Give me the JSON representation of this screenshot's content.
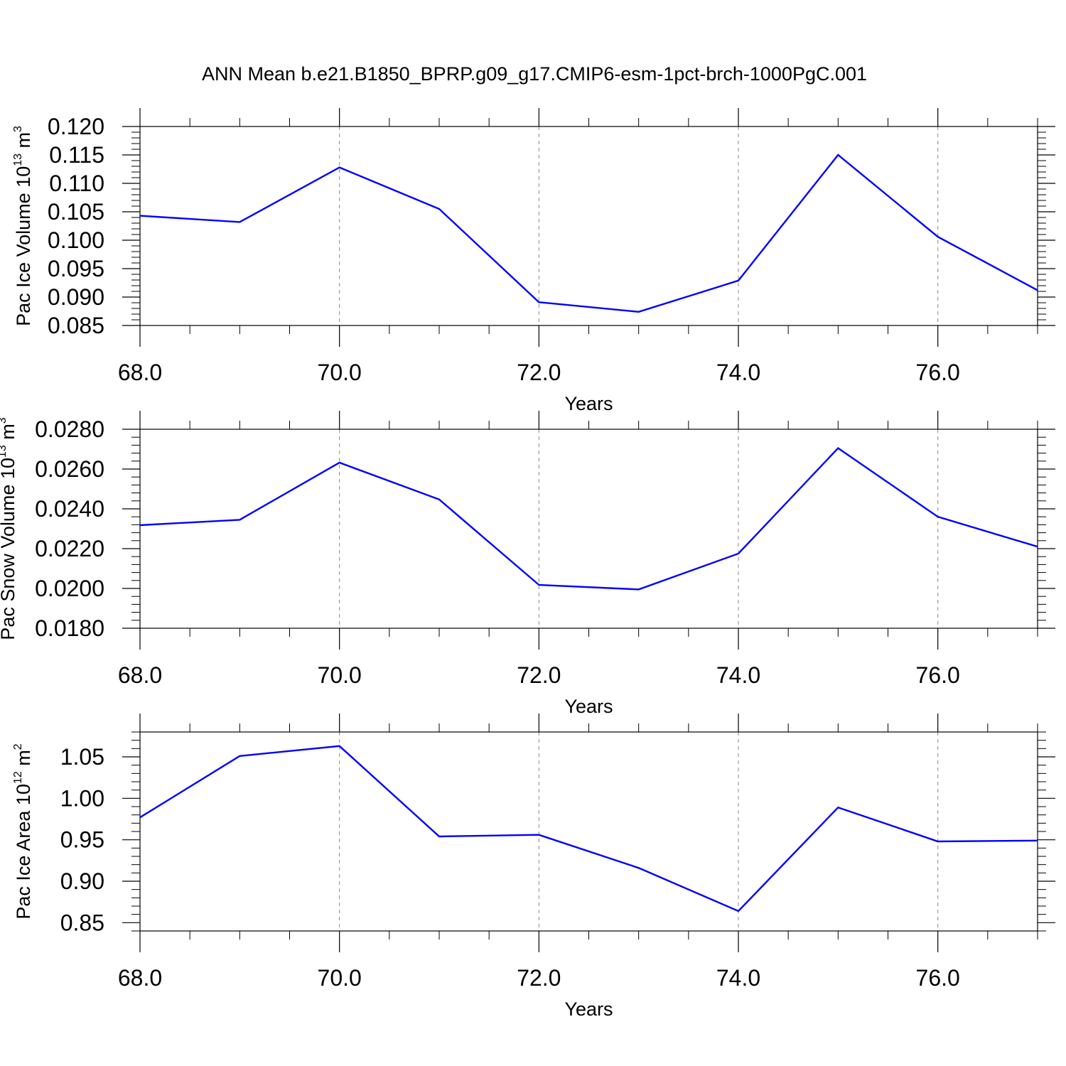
{
  "title": "ANN Mean b.e21.B1850_BPRP.g09_g17.CMIP6-esm-1pct-brch-1000PgC.001",
  "style": {
    "line_color": "#0000ff",
    "frame_color": "#000000",
    "grid_color": "#888888"
  },
  "chart_data": [
    {
      "type": "line",
      "xlabel": "Years",
      "ylabel": {
        "text": "Pac Ice Volume 10",
        "sup": "13",
        "unit": " m",
        "unit_sup": "3"
      },
      "xlim": [
        68,
        77
      ],
      "ylim": [
        0.085,
        0.12
      ],
      "grid": "vertical-dashed",
      "x": [
        68,
        69,
        70,
        71,
        72,
        73,
        74,
        75,
        76,
        77
      ],
      "x_ticks": [
        68,
        70,
        72,
        74,
        76
      ],
      "x_tick_labels": [
        "68.0",
        "70.0",
        "72.0",
        "74.0",
        "76.0"
      ],
      "y_ticks": [
        0.085,
        0.09,
        0.095,
        0.1,
        0.105,
        0.11,
        0.115,
        0.12
      ],
      "y_tick_labels": [
        "0.085",
        "0.090",
        "0.095",
        "0.100",
        "0.105",
        "0.110",
        "0.115",
        "0.120"
      ],
      "series": [
        {
          "values": [
            0.1043,
            0.1032,
            0.1128,
            0.1055,
            0.0891,
            0.0874,
            0.0929,
            0.115,
            0.1006,
            0.0912
          ]
        }
      ]
    },
    {
      "type": "line",
      "xlabel": "Years",
      "ylabel": {
        "text": "Pac Snow Volume 10",
        "sup": "13",
        "unit": " m",
        "unit_sup": "3"
      },
      "xlim": [
        68,
        77
      ],
      "ylim": [
        0.018,
        0.028
      ],
      "grid": "vertical-dashed",
      "x": [
        68,
        69,
        70,
        71,
        72,
        73,
        74,
        75,
        76,
        77
      ],
      "x_ticks": [
        68,
        70,
        72,
        74,
        76
      ],
      "x_tick_labels": [
        "68.0",
        "70.0",
        "72.0",
        "74.0",
        "76.0"
      ],
      "y_ticks": [
        0.018,
        0.02,
        0.022,
        0.024,
        0.026,
        0.028
      ],
      "y_tick_labels": [
        "0.0180",
        "0.0200",
        "0.0220",
        "0.0240",
        "0.0260",
        "0.0280"
      ],
      "series": [
        {
          "values": [
            0.02318,
            0.02345,
            0.02632,
            0.02447,
            0.02018,
            0.01995,
            0.02175,
            0.02705,
            0.0236,
            0.0221
          ]
        }
      ]
    },
    {
      "type": "line",
      "xlabel": "Years",
      "ylabel": {
        "text": "Pac Ice Area 10",
        "sup": "12",
        "unit": " m",
        "unit_sup": "2"
      },
      "xlim": [
        68,
        77
      ],
      "ylim": [
        0.84,
        1.08
      ],
      "grid": "vertical-dashed",
      "x": [
        68,
        69,
        70,
        71,
        72,
        73,
        74,
        75,
        76,
        77
      ],
      "x_ticks": [
        68,
        70,
        72,
        74,
        76
      ],
      "x_tick_labels": [
        "68.0",
        "70.0",
        "72.0",
        "74.0",
        "76.0"
      ],
      "y_ticks": [
        0.85,
        0.9,
        0.95,
        1.0,
        1.05
      ],
      "y_tick_labels": [
        "0.85",
        "0.90",
        "0.95",
        "1.00",
        "1.05"
      ],
      "series": [
        {
          "values": [
            0.977,
            1.051,
            1.063,
            0.954,
            0.956,
            0.916,
            0.864,
            0.989,
            0.948,
            0.949
          ]
        }
      ]
    }
  ]
}
